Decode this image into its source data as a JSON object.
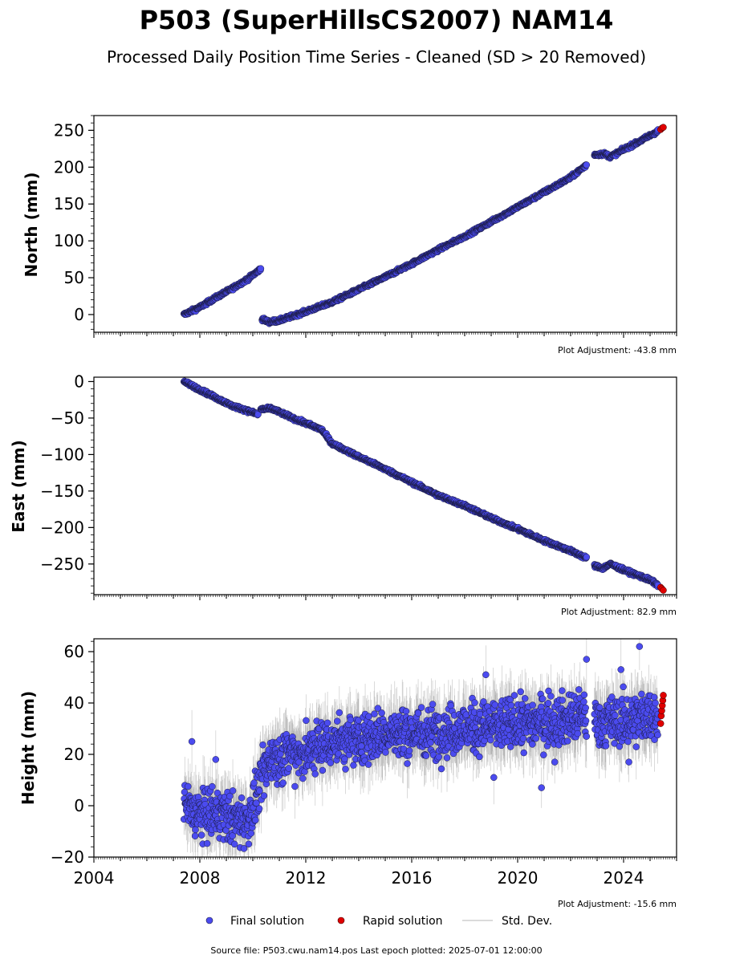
{
  "figure": {
    "title": "P503 (SuperHillsCS2007) NAM14",
    "subtitle": "Processed Daily Position Time Series - Cleaned (SD > 20 Removed)",
    "footer": "Source file: P503.cwu.nam14.pos  Last epoch plotted: 2025-07-01 12:00:00"
  },
  "legend": {
    "final": "Final solution",
    "rapid": "Rapid solution",
    "std": "Std. Dev."
  },
  "colors": {
    "final": "#4b4bef",
    "final_edge": "#1a1a40",
    "rapid": "#e00000",
    "std": "#9a9a9a"
  },
  "chart_data": [
    {
      "type": "scatter",
      "ylabel": "North (mm)",
      "xlabel": "",
      "adjustment": "Plot Adjustment: -43.8 mm",
      "xlim": [
        2004.0,
        2026.0
      ],
      "ylim": [
        -24,
        270
      ],
      "yticks": [
        0,
        50,
        100,
        150,
        200,
        250
      ],
      "xticks": [
        2004,
        2008,
        2012,
        2016,
        2020,
        2024
      ],
      "series": [
        {
          "name": "Final solution",
          "kind": "final",
          "x": [
            2007.4,
            2008.0,
            2008.6,
            2009.2,
            2009.8,
            2010.3
          ],
          "y": [
            0,
            10,
            23,
            35,
            48,
            62
          ]
        },
        {
          "name": "Final solution",
          "kind": "final",
          "x": [
            2010.35,
            2010.6,
            2011.0,
            2012.0,
            2013.0,
            2014.0,
            2015.0,
            2016.0,
            2017.0,
            2018.0,
            2019.0,
            2020.0,
            2021.0,
            2022.0,
            2022.6
          ],
          "y": [
            -6,
            -10,
            -8,
            4,
            17,
            34,
            51,
            69,
            88,
            106,
            126,
            146,
            166,
            186,
            203
          ]
        },
        {
          "name": "Final solution",
          "kind": "final",
          "x": [
            2022.9,
            2023.3,
            2023.5,
            2024.0,
            2024.5,
            2025.0,
            2025.3
          ],
          "y": [
            217,
            218,
            214,
            224,
            233,
            243,
            249
          ]
        },
        {
          "name": "Rapid solution",
          "kind": "rapid",
          "x": [
            2025.4,
            2025.45,
            2025.5
          ],
          "y": [
            251,
            253,
            254
          ]
        }
      ]
    },
    {
      "type": "scatter",
      "ylabel": "East (mm)",
      "xlabel": "",
      "adjustment": "Plot Adjustment: 82.9 mm",
      "xlim": [
        2004.0,
        2026.0
      ],
      "ylim": [
        -292,
        6
      ],
      "yticks": [
        0,
        -50,
        -100,
        -150,
        -200,
        -250
      ],
      "xticks": [
        2004,
        2008,
        2012,
        2016,
        2020,
        2024
      ],
      "series": [
        {
          "name": "Final solution",
          "kind": "final",
          "x": [
            2007.4,
            2008.0,
            2008.6,
            2009.2,
            2009.8,
            2010.2
          ],
          "y": [
            0,
            -11,
            -22,
            -33,
            -40,
            -45
          ]
        },
        {
          "name": "Final solution",
          "kind": "final",
          "x": [
            2010.3,
            2010.7,
            2011.2,
            2011.7,
            2012.2,
            2012.6,
            2013.0,
            2014.0,
            2015.0,
            2016.0,
            2017.0,
            2018.0,
            2019.0,
            2020.0,
            2021.0,
            2022.0,
            2022.6
          ],
          "y": [
            -38,
            -37,
            -45,
            -53,
            -60,
            -66,
            -85,
            -103,
            -120,
            -138,
            -156,
            -170,
            -187,
            -202,
            -218,
            -232,
            -242
          ]
        },
        {
          "name": "Final solution",
          "kind": "final",
          "x": [
            2022.9,
            2023.2,
            2023.5,
            2024.0,
            2024.5,
            2025.0,
            2025.3
          ],
          "y": [
            -252,
            -256,
            -250,
            -258,
            -265,
            -272,
            -279
          ]
        },
        {
          "name": "Rapid solution",
          "kind": "rapid",
          "x": [
            2025.4,
            2025.45,
            2025.5
          ],
          "y": [
            -282,
            -284,
            -286
          ]
        }
      ]
    },
    {
      "type": "scatter",
      "ylabel": "Height (mm)",
      "xlabel": "",
      "adjustment": "Plot Adjustment: -15.6 mm",
      "xlim": [
        2004.0,
        2026.0
      ],
      "ylim": [
        -20,
        65
      ],
      "yticks": [
        -20,
        0,
        20,
        40,
        60
      ],
      "xticks": [
        2004,
        2008,
        2012,
        2016,
        2020,
        2024
      ],
      "series": [
        {
          "name": "Final solution",
          "kind": "final",
          "x": [
            2007.4,
            2008.0,
            2008.6,
            2009.2,
            2009.8,
            2010.2,
            2010.6,
            2011.0,
            2011.5,
            2012.0,
            2012.5,
            2013.0,
            2014.0,
            2015.0,
            2016.0,
            2017.0,
            2018.0,
            2019.0,
            2020.0,
            2021.0,
            2022.0,
            2022.6
          ],
          "y": [
            0,
            -4,
            -3,
            -5,
            -6,
            5,
            18,
            19,
            21,
            20,
            24,
            25,
            26,
            28,
            28,
            29,
            30,
            31,
            32,
            33,
            34,
            35
          ]
        },
        {
          "name": "Final solution",
          "kind": "final",
          "x": [
            2022.9,
            2023.5,
            2024.0,
            2024.5,
            2025.0,
            2025.3
          ],
          "y": [
            33,
            32,
            33,
            34,
            35,
            36
          ]
        },
        {
          "name": "Final solution",
          "kind": "final",
          "x": [
            2008.6,
            2007.7,
            2018.8,
            2019.1,
            2020.9,
            2021.4,
            2023.9,
            2024.6,
            2024.2,
            2022.6
          ],
          "y": [
            18,
            25,
            51,
            11,
            7,
            17,
            53,
            62,
            17,
            57
          ]
        },
        {
          "name": "Rapid solution",
          "kind": "rapid",
          "x": [
            2025.4,
            2025.42,
            2025.44,
            2025.46,
            2025.48,
            2025.5
          ],
          "y": [
            32,
            35,
            37,
            39,
            41,
            43
          ]
        }
      ]
    }
  ]
}
